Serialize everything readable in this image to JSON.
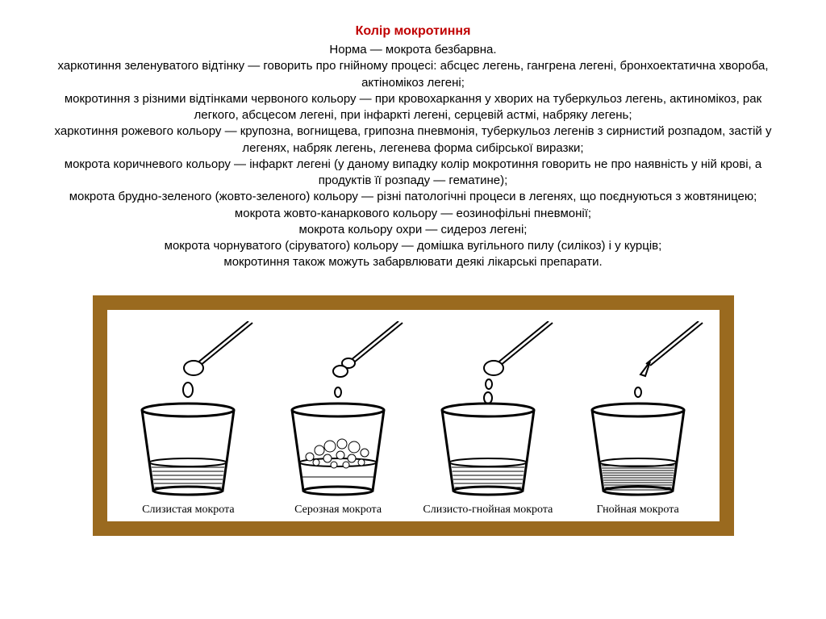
{
  "title": "Колір мокротиння",
  "text_lines": [
    "Норма — мокрота безбарвна.",
    "харкотиння зеленуватого відтінку — говорить про гнійному процесі: абсцес легень, гангрена легені, бронхоектатична хвороба,",
    "актіномікоз легені;",
    "мокротиння з різними відтінками червоного кольору — при кровохаркання у хворих на туберкульоз легень, актиномікоз, рак",
    "легкого, абсцесом легені, при інфаркті легені, серцевій астмі, набряку легень;",
    "харкотиння рожевого кольору — крупозна, вогнищева, грипозна пневмонія, туберкульоз легенів з сирнистий розпадом, застій у",
    "легенях, набряк легень, легенева форма сибірської виразки;",
    "мокрота коричневого кольору — інфаркт легені (у даному випадку колір мокротиння говорить не про наявність у ній крові, а",
    "продуктів її розпаду — гематине);",
    "мокрота брудно-зеленого (жовто-зеленого) кольору — різні патологічні процеси в легенях, що поєднуються з жовтяницею;",
    "мокрота жовто-канаркового кольору — еозинофільні пневмонії;",
    "мокрота кольору охри — сидероз легені;",
    "мокрота чорнуватого (сіруватого) кольору — домішка вугільного пилу (силікоз) і у курців;",
    "мокротиння також можуть забарвлювати деякі лікарські препарати."
  ],
  "figure": {
    "frame_border_color": "#9a6a1f",
    "frame_border_width": 18,
    "background": "#ffffff",
    "stroke_color": "#000000",
    "stroke_width": 2,
    "caption_font": "Times New Roman",
    "caption_fontsize": 14,
    "cups": [
      {
        "label": "Слизистая мокрота",
        "pipette_tip": "blob",
        "drop": "blob",
        "fill_hatch": "horiz",
        "bubbles": false
      },
      {
        "label": "Серозная мокрота",
        "pipette_tip": "double",
        "drop": "small",
        "fill_hatch": "none",
        "bubbles": true
      },
      {
        "label": "Слизисто-гнойная мокрота",
        "pipette_tip": "blob",
        "drop": "stream",
        "fill_hatch": "horiz",
        "bubbles": false
      },
      {
        "label": "Гнойная мокрота",
        "pipette_tip": "narrow",
        "drop": "small",
        "fill_hatch": "dense",
        "bubbles": false
      }
    ]
  },
  "colors": {
    "title": "#c00000",
    "text": "#000000",
    "page_bg": "#ffffff"
  }
}
